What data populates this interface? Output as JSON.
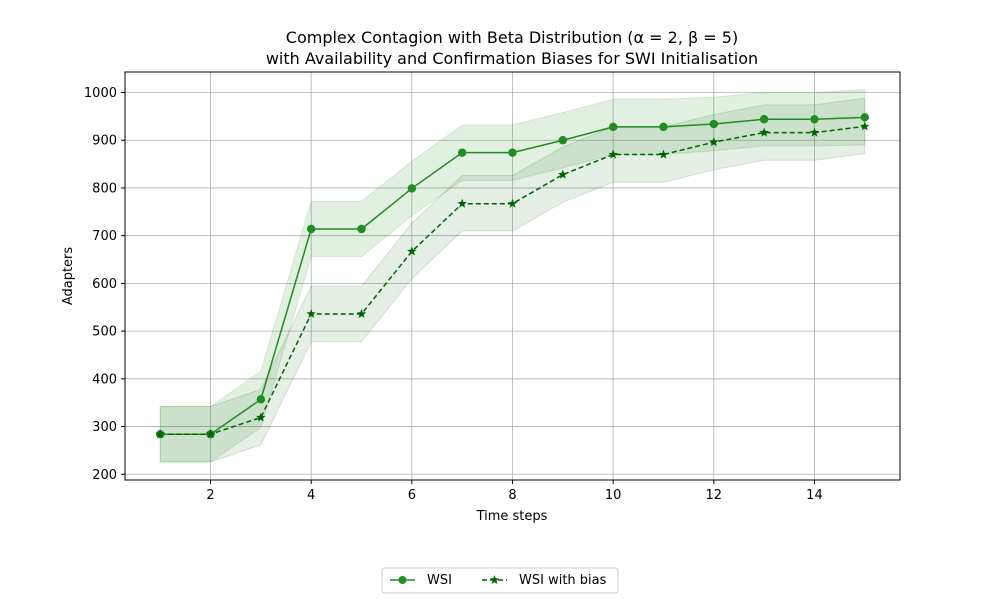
{
  "chart_data": {
    "type": "line",
    "title": "Complex Contagion with Beta Distribution (α = 2, β = 5)",
    "subtitle": "with Availability and Confirmation Biases for SWI Initialisation",
    "xlabel": "Time steps",
    "ylabel": "Adapters",
    "xlim": [
      0.3,
      15.7
    ],
    "ylim": [
      188,
      1043
    ],
    "xticks": [
      2,
      4,
      6,
      8,
      10,
      12,
      14
    ],
    "yticks": [
      200,
      300,
      400,
      500,
      600,
      700,
      800,
      900,
      1000
    ],
    "grid": true,
    "legend_position": "bottom-center",
    "x": [
      1,
      2,
      3,
      4,
      5,
      6,
      7,
      8,
      9,
      10,
      11,
      12,
      13,
      14,
      15
    ],
    "series": [
      {
        "name": "WSI",
        "marker": "circle",
        "line_style": "solid",
        "color": "#228b22",
        "values": [
          284,
          284,
          357,
          714,
          714,
          799,
          874,
          874,
          900,
          928,
          928,
          934,
          944,
          944,
          948
        ],
        "band_lower": [
          226,
          226,
          298,
          656,
          656,
          742,
          816,
          816,
          842,
          870,
          870,
          878,
          888,
          888,
          890
        ],
        "band_upper": [
          342,
          342,
          416,
          772,
          772,
          856,
          932,
          932,
          958,
          986,
          986,
          990,
          1000,
          1000,
          1006
        ]
      },
      {
        "name": "WSI with bias",
        "marker": "star",
        "line_style": "dashed",
        "color": "#006400",
        "values": [
          284,
          284,
          319,
          536,
          536,
          667,
          767,
          767,
          828,
          870,
          870,
          896,
          916,
          916,
          929
        ],
        "band_lower": [
          226,
          226,
          262,
          478,
          478,
          610,
          710,
          710,
          770,
          812,
          812,
          838,
          858,
          858,
          872
        ],
        "band_upper": [
          342,
          342,
          378,
          594,
          594,
          726,
          826,
          826,
          886,
          928,
          928,
          954,
          974,
          974,
          988
        ]
      }
    ]
  }
}
